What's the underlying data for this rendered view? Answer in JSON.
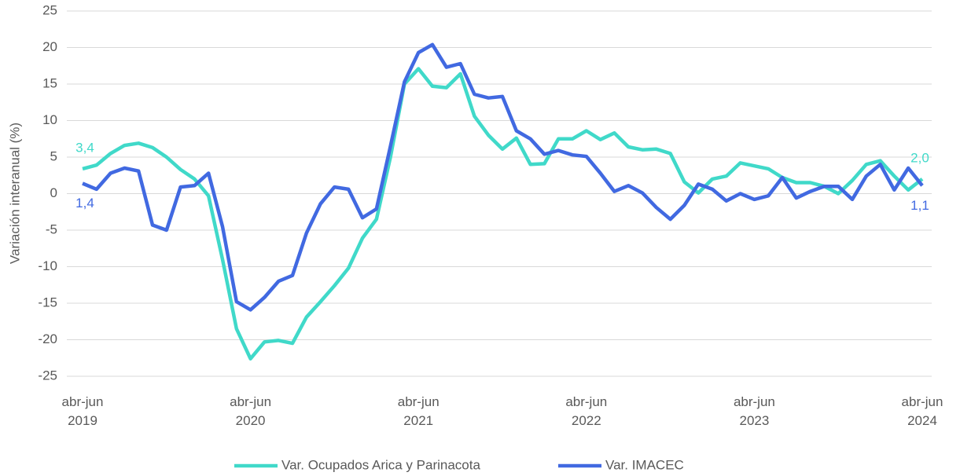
{
  "chart_data": {
    "type": "line",
    "y_label": "Variación interanual (%)",
    "categories": [
      "abr-jun 2019",
      null,
      null,
      null,
      null,
      null,
      null,
      null,
      null,
      null,
      null,
      null,
      "abr-jun 2020",
      null,
      null,
      null,
      null,
      null,
      null,
      null,
      null,
      null,
      null,
      null,
      "abr-jun 2021",
      null,
      null,
      null,
      null,
      null,
      null,
      null,
      null,
      null,
      null,
      null,
      "abr-jun 2022",
      null,
      null,
      null,
      null,
      null,
      null,
      null,
      null,
      null,
      null,
      null,
      "abr-jun 2023",
      null,
      null,
      null,
      null,
      null,
      null,
      null,
      null,
      null,
      null,
      null,
      "abr-jun 2024"
    ],
    "series": [
      {
        "name": "Var. Ocupados Arica y Parinacota",
        "color": "#40d9c9",
        "values": [
          3.4,
          3.9,
          5.5,
          6.6,
          6.9,
          6.3,
          5.0,
          3.3,
          2.0,
          -0.3,
          -9,
          -18.5,
          -22.6,
          -20.3,
          -20.1,
          -20.5,
          -16.9,
          -14.8,
          -12.6,
          -10.2,
          -6.1,
          -3.5,
          5,
          15,
          17.1,
          14.7,
          14.5,
          16.4,
          10.6,
          8.0,
          6.1,
          7.6,
          4.0,
          4.1,
          7.5,
          7.5,
          8.6,
          7.4,
          8.3,
          6.4,
          6.0,
          6.1,
          5.5,
          1.6,
          0.1,
          2.0,
          2.4,
          4.2,
          3.8,
          3.4,
          2.2,
          1.5,
          1.5,
          1.0,
          0.0,
          1.8,
          4.0,
          4.5,
          2.4,
          0.5,
          2.0
        ],
        "value_labels": [
          "3,4",
          null,
          null,
          null,
          null,
          null,
          null,
          null,
          null,
          null,
          null,
          null,
          null,
          null,
          null,
          null,
          null,
          null,
          null,
          null,
          null,
          null,
          null,
          null,
          null,
          null,
          null,
          null,
          null,
          null,
          null,
          null,
          null,
          null,
          null,
          null,
          null,
          null,
          null,
          null,
          null,
          null,
          null,
          null,
          null,
          null,
          null,
          null,
          null,
          null,
          null,
          null,
          null,
          null,
          null,
          null,
          null,
          null,
          null,
          null,
          "2,0"
        ]
      },
      {
        "name": "Var. IMACEC",
        "color": "#4169e1",
        "values": [
          1.4,
          0.6,
          2.8,
          3.5,
          3.1,
          -4.3,
          -5.0,
          0.9,
          1.1,
          2.8,
          -4.5,
          -14.8,
          -15.9,
          -14.2,
          -12.0,
          -11.2,
          -5.4,
          -1.4,
          0.9,
          0.6,
          -3.3,
          -2.1,
          6.5,
          15.3,
          19.3,
          20.4,
          17.3,
          17.8,
          13.6,
          13.1,
          13.3,
          8.6,
          7.5,
          5.4,
          5.9,
          5.3,
          5.1,
          2.8,
          0.3,
          1.1,
          0.1,
          -1.9,
          -3.5,
          -1.6,
          1.3,
          0.6,
          -1.0,
          0.0,
          -0.8,
          -0.3,
          2.2,
          -0.6,
          0.3,
          1.0,
          1.0,
          -0.8,
          2.4,
          4.0,
          0.5,
          3.5,
          1.1
        ],
        "value_labels": [
          "1,4",
          null,
          null,
          null,
          null,
          null,
          null,
          null,
          null,
          null,
          null,
          null,
          null,
          null,
          null,
          null,
          null,
          null,
          null,
          null,
          null,
          null,
          null,
          null,
          null,
          null,
          null,
          null,
          null,
          null,
          null,
          null,
          null,
          null,
          null,
          null,
          null,
          null,
          null,
          null,
          null,
          null,
          null,
          null,
          null,
          null,
          null,
          null,
          null,
          null,
          null,
          null,
          null,
          null,
          null,
          null,
          null,
          null,
          null,
          null,
          "1,1"
        ]
      }
    ],
    "ylim": [
      -25,
      25
    ],
    "yticks": [
      -25,
      -20,
      -15,
      -10,
      -5,
      0,
      5,
      10,
      15,
      20,
      25
    ],
    "grid": true,
    "legend": "bottom"
  }
}
